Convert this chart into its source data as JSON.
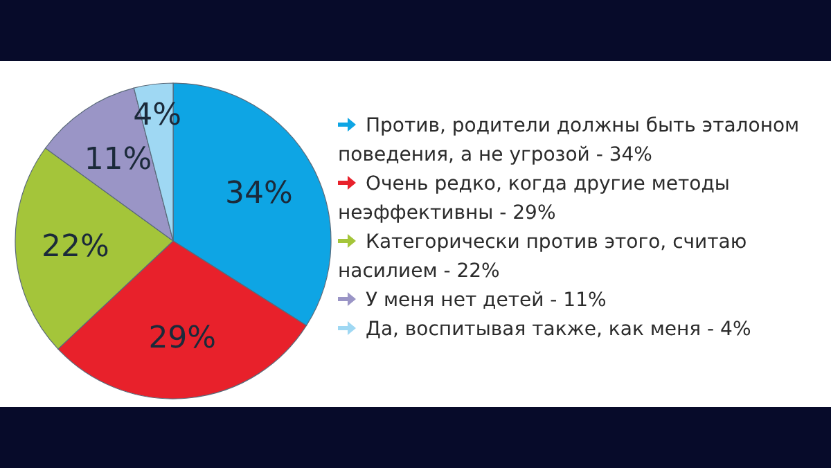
{
  "chart_data": {
    "type": "pie",
    "categories": [
      "Против, родители должны быть эталоном поведения, а не угрозой - 34%",
      "Очень редко, когда другие методы неэффективны - 29%",
      "Категорически против этого, считаю насилием - 22%",
      "У меня нет детей - 11%",
      "Да, воспитывая также, как меня - 4%"
    ],
    "values": [
      34,
      29,
      22,
      11,
      4
    ],
    "colors": [
      "#0ea5e4",
      "#e8212b",
      "#a4c53a",
      "#9a95c6",
      "#9fd8f3"
    ],
    "value_labels": [
      "34%",
      "29%",
      "22%",
      "11%",
      "4%"
    ],
    "legend": "right"
  }
}
